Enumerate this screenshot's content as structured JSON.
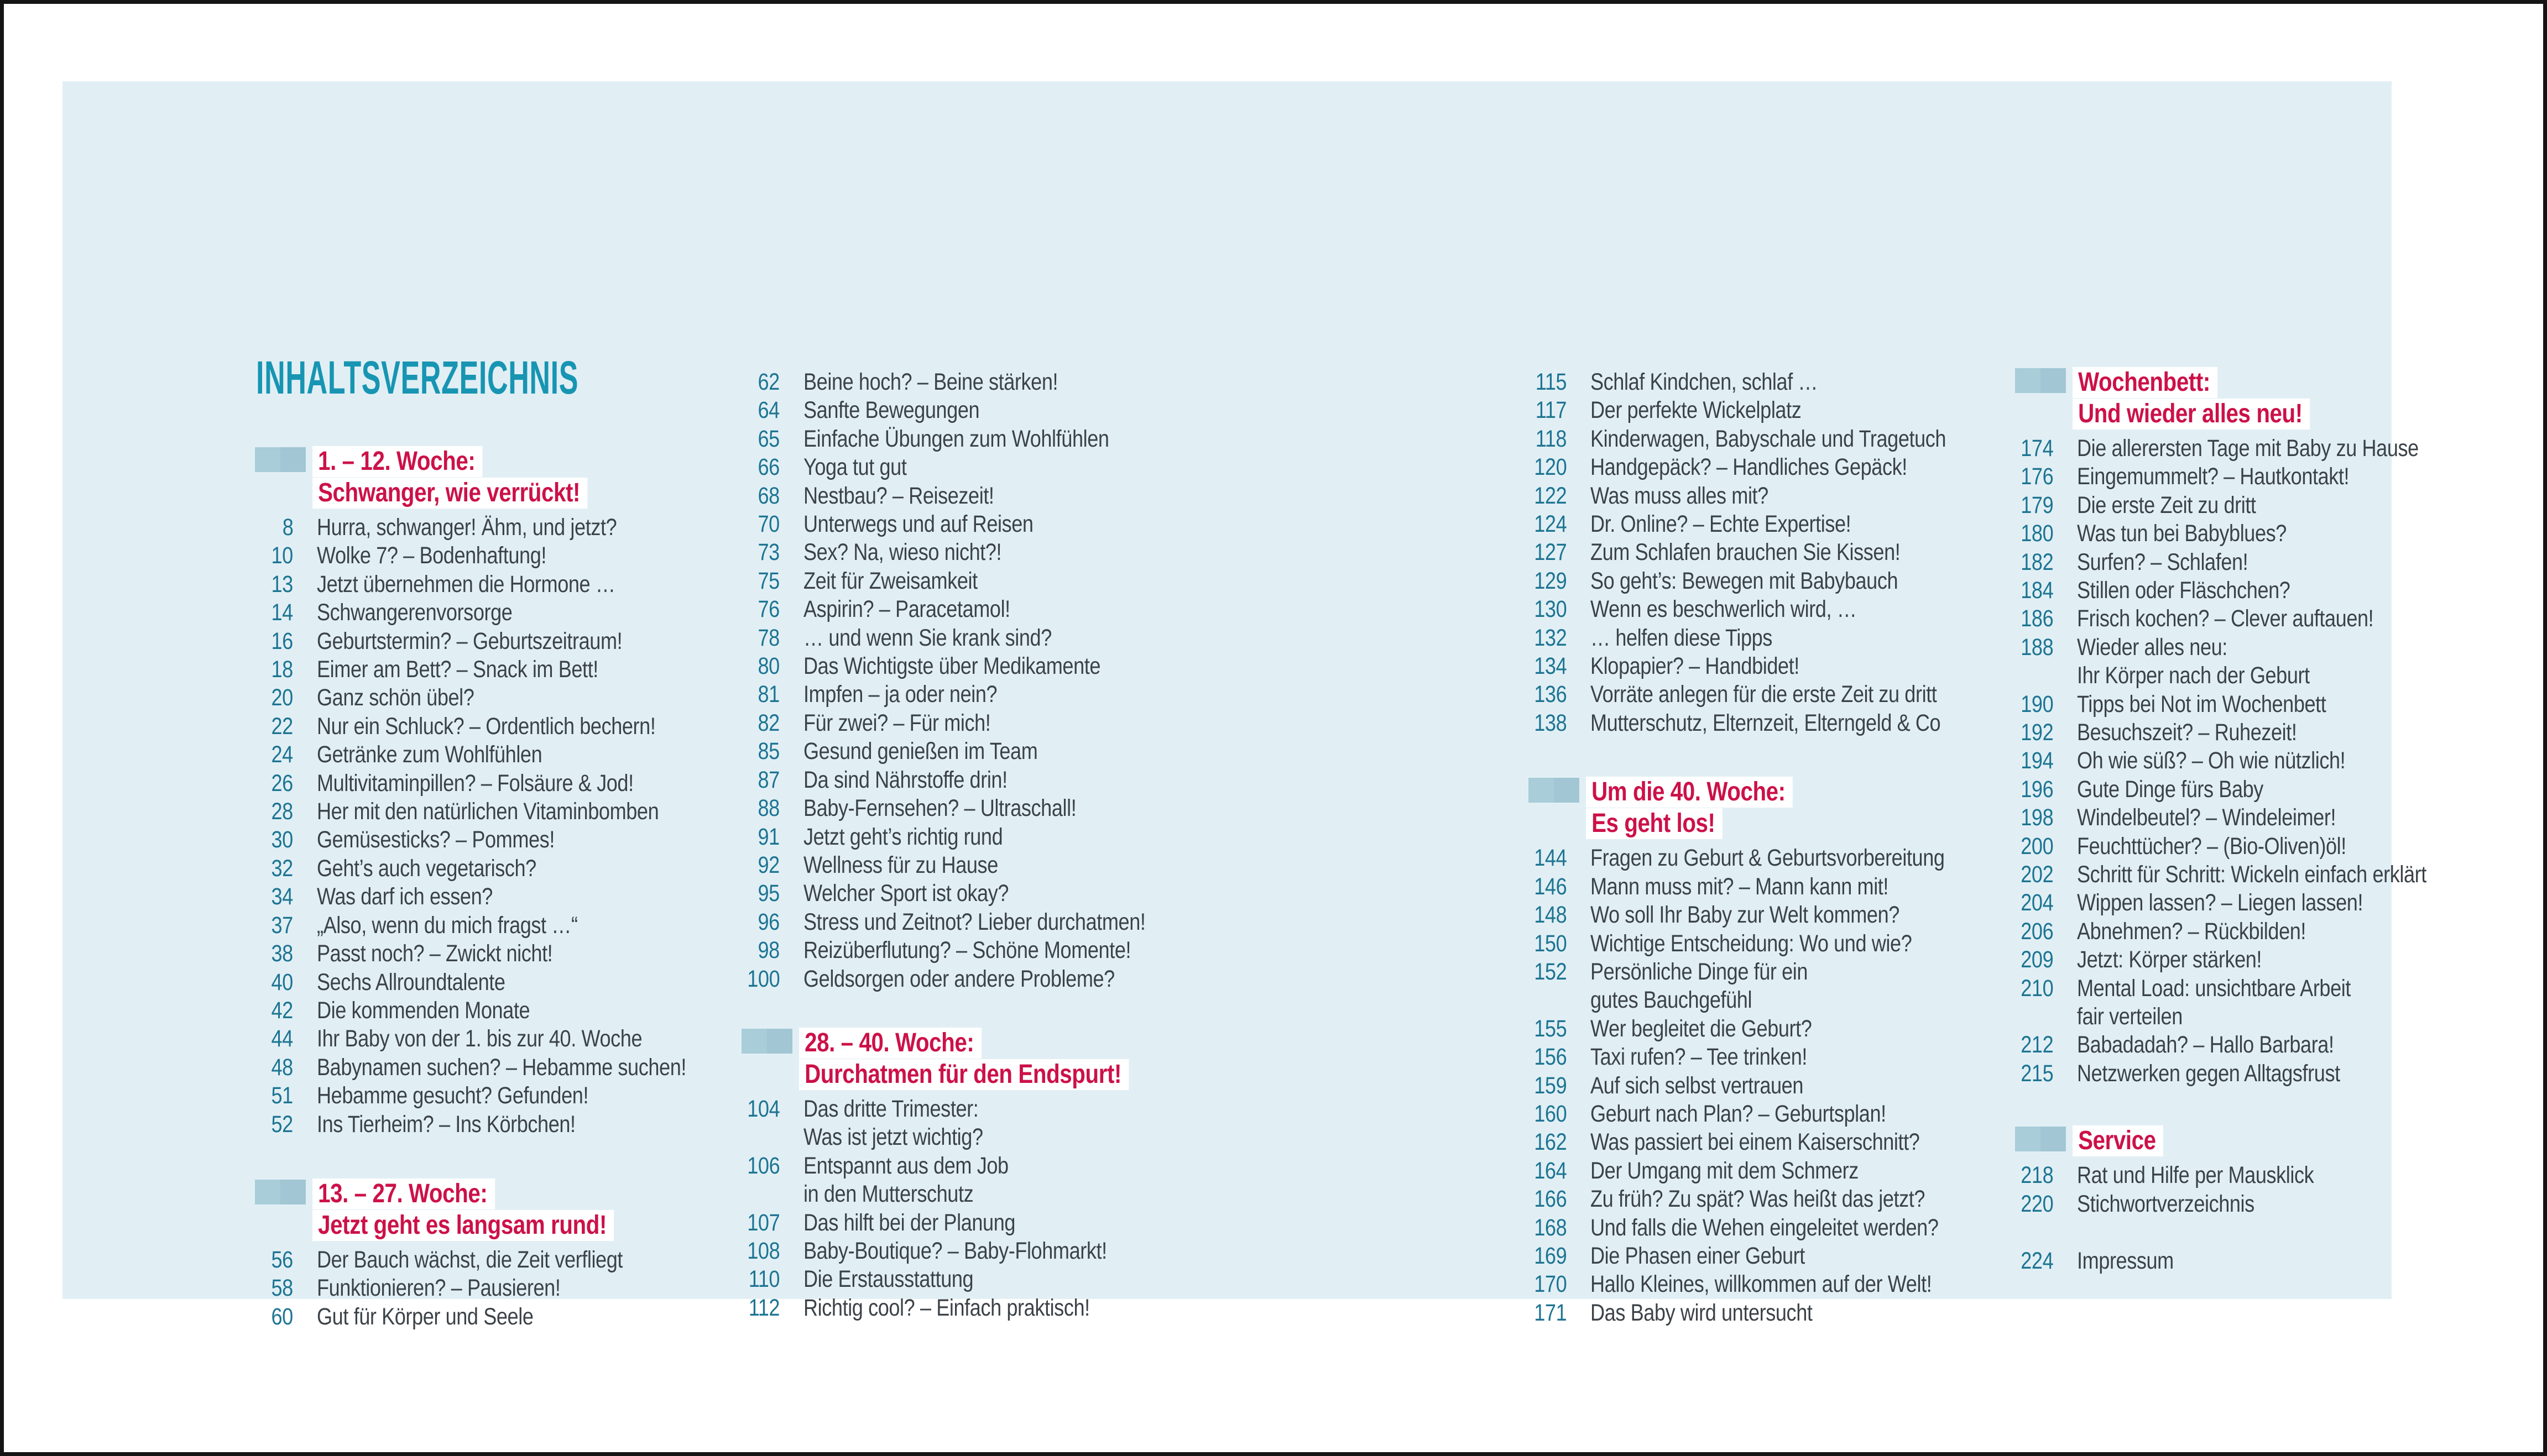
{
  "title": "INHALTSVERZEICHNIS",
  "colors": {
    "panel_background": "#e1eff5",
    "title_teal": "#1795b2",
    "page_number_teal": "#1d7492",
    "section_heading_red": "#cc1148",
    "body_text": "#3b4247",
    "section_marker_blue": "#a9cdd9"
  },
  "columns": [
    {
      "blocks": [
        {
          "type": "section",
          "lines": [
            "1. – 12. Woche:",
            "Schwanger, wie verrückt!"
          ]
        },
        {
          "type": "entry",
          "num": "8",
          "lines": [
            "Hurra, schwanger! Ähm, und jetzt?"
          ]
        },
        {
          "type": "entry",
          "num": "10",
          "lines": [
            "Wolke 7? – Bodenhaftung!"
          ]
        },
        {
          "type": "entry",
          "num": "13",
          "lines": [
            "Jetzt übernehmen die Hormone …"
          ]
        },
        {
          "type": "entry",
          "num": "14",
          "lines": [
            "Schwangerenvorsorge"
          ]
        },
        {
          "type": "entry",
          "num": "16",
          "lines": [
            "Geburtstermin? – Geburtszeitraum!"
          ]
        },
        {
          "type": "entry",
          "num": "18",
          "lines": [
            "Eimer am Bett? – Snack im Bett!"
          ]
        },
        {
          "type": "entry",
          "num": "20",
          "lines": [
            "Ganz schön übel?"
          ]
        },
        {
          "type": "entry",
          "num": "22",
          "lines": [
            "Nur ein Schluck? – Ordentlich bechern!"
          ]
        },
        {
          "type": "entry",
          "num": "24",
          "lines": [
            "Getränke zum Wohlfühlen"
          ]
        },
        {
          "type": "entry",
          "num": "26",
          "lines": [
            "Multivitaminpillen? – Folsäure & Jod!"
          ]
        },
        {
          "type": "entry",
          "num": "28",
          "lines": [
            "Her mit den natürlichen Vitaminbomben"
          ]
        },
        {
          "type": "entry",
          "num": "30",
          "lines": [
            "Gemüsesticks? – Pommes!"
          ]
        },
        {
          "type": "entry",
          "num": "32",
          "lines": [
            "Geht’s auch vegetarisch?"
          ]
        },
        {
          "type": "entry",
          "num": "34",
          "lines": [
            "Was darf ich essen?"
          ]
        },
        {
          "type": "entry",
          "num": "37",
          "lines": [
            "„Also, wenn du mich fragst …“"
          ]
        },
        {
          "type": "entry",
          "num": "38",
          "lines": [
            "Passt noch? – Zwickt nicht!"
          ]
        },
        {
          "type": "entry",
          "num": "40",
          "lines": [
            "Sechs Allroundtalente"
          ]
        },
        {
          "type": "entry",
          "num": "42",
          "lines": [
            "Die kommenden Monate"
          ]
        },
        {
          "type": "entry",
          "num": "44",
          "lines": [
            "Ihr Baby von der 1. bis zur 40. Woche"
          ]
        },
        {
          "type": "entry",
          "num": "48",
          "lines": [
            "Babynamen suchen? – Hebamme suchen!"
          ]
        },
        {
          "type": "entry",
          "num": "51",
          "lines": [
            "Hebamme gesucht? Gefunden!"
          ]
        },
        {
          "type": "entry",
          "num": "52",
          "lines": [
            "Ins Tierheim? – Ins Körbchen!"
          ]
        },
        {
          "type": "section",
          "gap": "m-t-72",
          "lines": [
            "13. – 27. Woche:",
            "Jetzt geht es langsam rund!"
          ]
        },
        {
          "type": "entry",
          "num": "56",
          "lines": [
            "Der Bauch wächst, die Zeit verfliegt"
          ]
        },
        {
          "type": "entry",
          "num": "58",
          "lines": [
            "Funktionieren? – Pausieren!"
          ]
        },
        {
          "type": "entry",
          "num": "60",
          "lines": [
            "Gut für Körper und Seele"
          ]
        }
      ]
    },
    {
      "blocks": [
        {
          "type": "entry",
          "num": "62",
          "lines": [
            "Beine hoch? – Beine stärken!"
          ]
        },
        {
          "type": "entry",
          "num": "64",
          "lines": [
            "Sanfte Bewegungen"
          ]
        },
        {
          "type": "entry",
          "num": "65",
          "lines": [
            "Einfache Übungen zum Wohlfühlen"
          ]
        },
        {
          "type": "entry",
          "num": "66",
          "lines": [
            "Yoga tut gut"
          ]
        },
        {
          "type": "entry",
          "num": "68",
          "lines": [
            "Nestbau? – Reisezeit!"
          ]
        },
        {
          "type": "entry",
          "num": "70",
          "lines": [
            "Unterwegs und auf Reisen"
          ]
        },
        {
          "type": "entry",
          "num": "73",
          "lines": [
            "Sex? Na, wieso nicht?!"
          ]
        },
        {
          "type": "entry",
          "num": "75",
          "lines": [
            "Zeit für Zweisamkeit"
          ]
        },
        {
          "type": "entry",
          "num": "76",
          "lines": [
            "Aspirin? – Paracetamol!"
          ]
        },
        {
          "type": "entry",
          "num": "78",
          "lines": [
            "… und wenn Sie krank sind?"
          ]
        },
        {
          "type": "entry",
          "num": "80",
          "lines": [
            "Das Wichtigste über Medikamente"
          ]
        },
        {
          "type": "entry",
          "num": "81",
          "lines": [
            "Impfen – ja oder nein?"
          ]
        },
        {
          "type": "entry",
          "num": "82",
          "lines": [
            "Für zwei? – Für mich!"
          ]
        },
        {
          "type": "entry",
          "num": "85",
          "lines": [
            "Gesund genießen im Team"
          ]
        },
        {
          "type": "entry",
          "num": "87",
          "lines": [
            "Da sind Nährstoffe drin!"
          ]
        },
        {
          "type": "entry",
          "num": "88",
          "lines": [
            "Baby-Fernsehen? – Ultraschall!"
          ]
        },
        {
          "type": "entry",
          "num": "91",
          "lines": [
            "Jetzt geht’s richtig rund"
          ]
        },
        {
          "type": "entry",
          "num": "92",
          "lines": [
            "Wellness für zu Hause"
          ]
        },
        {
          "type": "entry",
          "num": "95",
          "lines": [
            "Welcher Sport ist okay?"
          ]
        },
        {
          "type": "entry",
          "num": "96",
          "lines": [
            "Stress und Zeitnot? Lieber durchatmen!"
          ]
        },
        {
          "type": "entry",
          "num": "98",
          "lines": [
            "Reizüberflutung? – Schöne Momente!"
          ]
        },
        {
          "type": "entry",
          "num": "100",
          "lines": [
            "Geldsorgen oder andere Probleme?"
          ]
        },
        {
          "type": "section",
          "gap": "m-t-62",
          "lines": [
            "28. – 40. Woche:",
            "Durchatmen für den Endspurt!"
          ]
        },
        {
          "type": "entry",
          "num": "104",
          "lines": [
            "Das dritte Trimester:",
            "Was ist jetzt wichtig?"
          ]
        },
        {
          "type": "entry",
          "num": "106",
          "lines": [
            "Entspannt aus dem Job",
            "in den Mutterschutz"
          ]
        },
        {
          "type": "entry",
          "num": "107",
          "lines": [
            "Das hilft bei der Planung"
          ]
        },
        {
          "type": "entry",
          "num": "108",
          "lines": [
            "Baby-Boutique? – Baby-Flohmarkt!"
          ]
        },
        {
          "type": "entry",
          "num": "110",
          "lines": [
            "Die Erstausstattung"
          ]
        },
        {
          "type": "entry",
          "num": "112",
          "lines": [
            "Richtig cool? – Einfach praktisch!"
          ]
        }
      ]
    },
    {
      "blocks": [
        {
          "type": "entry",
          "num": "115",
          "lines": [
            "Schlaf Kindchen, schlaf …"
          ]
        },
        {
          "type": "entry",
          "num": "117",
          "lines": [
            "Der perfekte Wickelplatz"
          ]
        },
        {
          "type": "entry",
          "num": "118",
          "lines": [
            "Kinderwagen, Babyschale und Tragetuch"
          ]
        },
        {
          "type": "entry",
          "num": "120",
          "lines": [
            "Handgepäck? – Handliches Gepäck!"
          ]
        },
        {
          "type": "entry",
          "num": "122",
          "lines": [
            "Was muss alles mit?"
          ]
        },
        {
          "type": "entry",
          "num": "124",
          "lines": [
            "Dr. Online? – Echte Expertise!"
          ]
        },
        {
          "type": "entry",
          "num": "127",
          "lines": [
            "Zum Schlafen brauchen Sie Kissen!"
          ]
        },
        {
          "type": "entry",
          "num": "129",
          "lines": [
            "So geht’s: Bewegen mit Babybauch"
          ]
        },
        {
          "type": "entry",
          "num": "130",
          "lines": [
            "Wenn es beschwerlich wird, …"
          ]
        },
        {
          "type": "entry",
          "num": "132",
          "lines": [
            "… helfen diese Tipps"
          ]
        },
        {
          "type": "entry",
          "num": "134",
          "lines": [
            "Klopapier? – Handbidet!"
          ]
        },
        {
          "type": "entry",
          "num": "136",
          "lines": [
            "Vorräte anlegen für die erste Zeit zu dritt"
          ]
        },
        {
          "type": "entry",
          "num": "138",
          "lines": [
            "Mutterschutz, Elternzeit, Elterngeld & Co"
          ]
        },
        {
          "type": "section",
          "gap": "sec-gap-top",
          "lines": [
            "Um die 40. Woche:",
            "Es geht los!"
          ]
        },
        {
          "type": "entry",
          "num": "144",
          "lines": [
            "Fragen zu Geburt & Geburtsvorbereitung"
          ]
        },
        {
          "type": "entry",
          "num": "146",
          "lines": [
            "Mann muss mit? – Mann kann mit!"
          ]
        },
        {
          "type": "entry",
          "num": "148",
          "lines": [
            "Wo soll Ihr Baby zur Welt kommen?"
          ]
        },
        {
          "type": "entry",
          "num": "150",
          "lines": [
            "Wichtige Entscheidung: Wo und wie?"
          ]
        },
        {
          "type": "entry",
          "num": "152",
          "lines": [
            "Persönliche Dinge für ein",
            "gutes Bauchgefühl"
          ]
        },
        {
          "type": "entry",
          "num": "155",
          "lines": [
            "Wer begleitet die Geburt?"
          ]
        },
        {
          "type": "entry",
          "num": "156",
          "lines": [
            "Taxi rufen? – Tee trinken!"
          ]
        },
        {
          "type": "entry",
          "num": "159",
          "lines": [
            "Auf sich selbst vertrauen"
          ]
        },
        {
          "type": "entry",
          "num": "160",
          "lines": [
            "Geburt nach Plan? – Geburtsplan!"
          ]
        },
        {
          "type": "entry",
          "num": "162",
          "lines": [
            "Was passiert bei einem Kaiserschnitt?"
          ]
        },
        {
          "type": "entry",
          "num": "164",
          "lines": [
            "Der Umgang mit dem Schmerz"
          ]
        },
        {
          "type": "entry",
          "num": "166",
          "lines": [
            "Zu früh? Zu spät? Was heißt das jetzt?"
          ]
        },
        {
          "type": "entry",
          "num": "168",
          "lines": [
            "Und falls die Wehen eingeleitet werden?"
          ]
        },
        {
          "type": "entry",
          "num": "169",
          "lines": [
            "Die Phasen einer Geburt"
          ]
        },
        {
          "type": "entry",
          "num": "170",
          "lines": [
            "Hallo Kleines, willkommen auf der Welt!"
          ]
        },
        {
          "type": "entry",
          "num": "171",
          "lines": [
            "Das Baby wird untersucht"
          ]
        }
      ]
    },
    {
      "blocks": [
        {
          "type": "section",
          "lines": [
            "Wochenbett:",
            "Und wieder alles neu!"
          ]
        },
        {
          "type": "entry",
          "num": "174",
          "lines": [
            "Die allerersten Tage mit Baby zu Hause"
          ]
        },
        {
          "type": "entry",
          "num": "176",
          "lines": [
            "Eingemummelt? – Hautkontakt!"
          ]
        },
        {
          "type": "entry",
          "num": "179",
          "lines": [
            "Die erste Zeit zu dritt"
          ]
        },
        {
          "type": "entry",
          "num": "180",
          "lines": [
            "Was tun bei Babyblues?"
          ]
        },
        {
          "type": "entry",
          "num": "182",
          "lines": [
            "Surfen? – Schlafen!"
          ]
        },
        {
          "type": "entry",
          "num": "184",
          "lines": [
            "Stillen oder Fläschchen?"
          ]
        },
        {
          "type": "entry",
          "num": "186",
          "lines": [
            "Frisch kochen? – Clever auftauen!"
          ]
        },
        {
          "type": "entry",
          "num": "188",
          "lines": [
            "Wieder alles neu:",
            "Ihr Körper nach der Geburt"
          ]
        },
        {
          "type": "entry",
          "num": "190",
          "lines": [
            "Tipps bei Not im Wochenbett"
          ]
        },
        {
          "type": "entry",
          "num": "192",
          "lines": [
            "Besuchszeit? – Ruhezeit!"
          ]
        },
        {
          "type": "entry",
          "num": "194",
          "lines": [
            "Oh wie süß? – Oh wie nützlich!"
          ]
        },
        {
          "type": "entry",
          "num": "196",
          "lines": [
            "Gute Dinge fürs Baby"
          ]
        },
        {
          "type": "entry",
          "num": "198",
          "lines": [
            "Windelbeutel? – Windeleimer!"
          ]
        },
        {
          "type": "entry",
          "num": "200",
          "lines": [
            "Feuchttücher? – (Bio-Oliven)öl!"
          ]
        },
        {
          "type": "entry",
          "num": "202",
          "lines": [
            "Schritt für Schritt: Wickeln einfach erklärt"
          ]
        },
        {
          "type": "entry",
          "num": "204",
          "lines": [
            "Wippen lassen? – Liegen lassen!"
          ]
        },
        {
          "type": "entry",
          "num": "206",
          "lines": [
            "Abnehmen? – Rückbilden!"
          ]
        },
        {
          "type": "entry",
          "num": "209",
          "lines": [
            "Jetzt: Körper stärken!"
          ]
        },
        {
          "type": "entry",
          "num": "210",
          "lines": [
            "Mental Load: unsichtbare Arbeit",
            "fair verteilen"
          ]
        },
        {
          "type": "entry",
          "num": "212",
          "lines": [
            "Babadadah? – Hallo Barbara!"
          ]
        },
        {
          "type": "entry",
          "num": "215",
          "lines": [
            "Netzwerken gegen Alltagsfrust"
          ]
        },
        {
          "type": "section",
          "gap": "m-t-68",
          "lines": [
            "Service"
          ]
        },
        {
          "type": "entry",
          "num": "218",
          "lines": [
            "Rat und Hilfe per Mausklick"
          ]
        },
        {
          "type": "entry",
          "num": "220",
          "lines": [
            "Stichwortverzeichnis"
          ]
        },
        {
          "type": "gap",
          "h": 52
        },
        {
          "type": "entry",
          "num": "224",
          "lines": [
            "Impressum"
          ]
        }
      ]
    }
  ]
}
